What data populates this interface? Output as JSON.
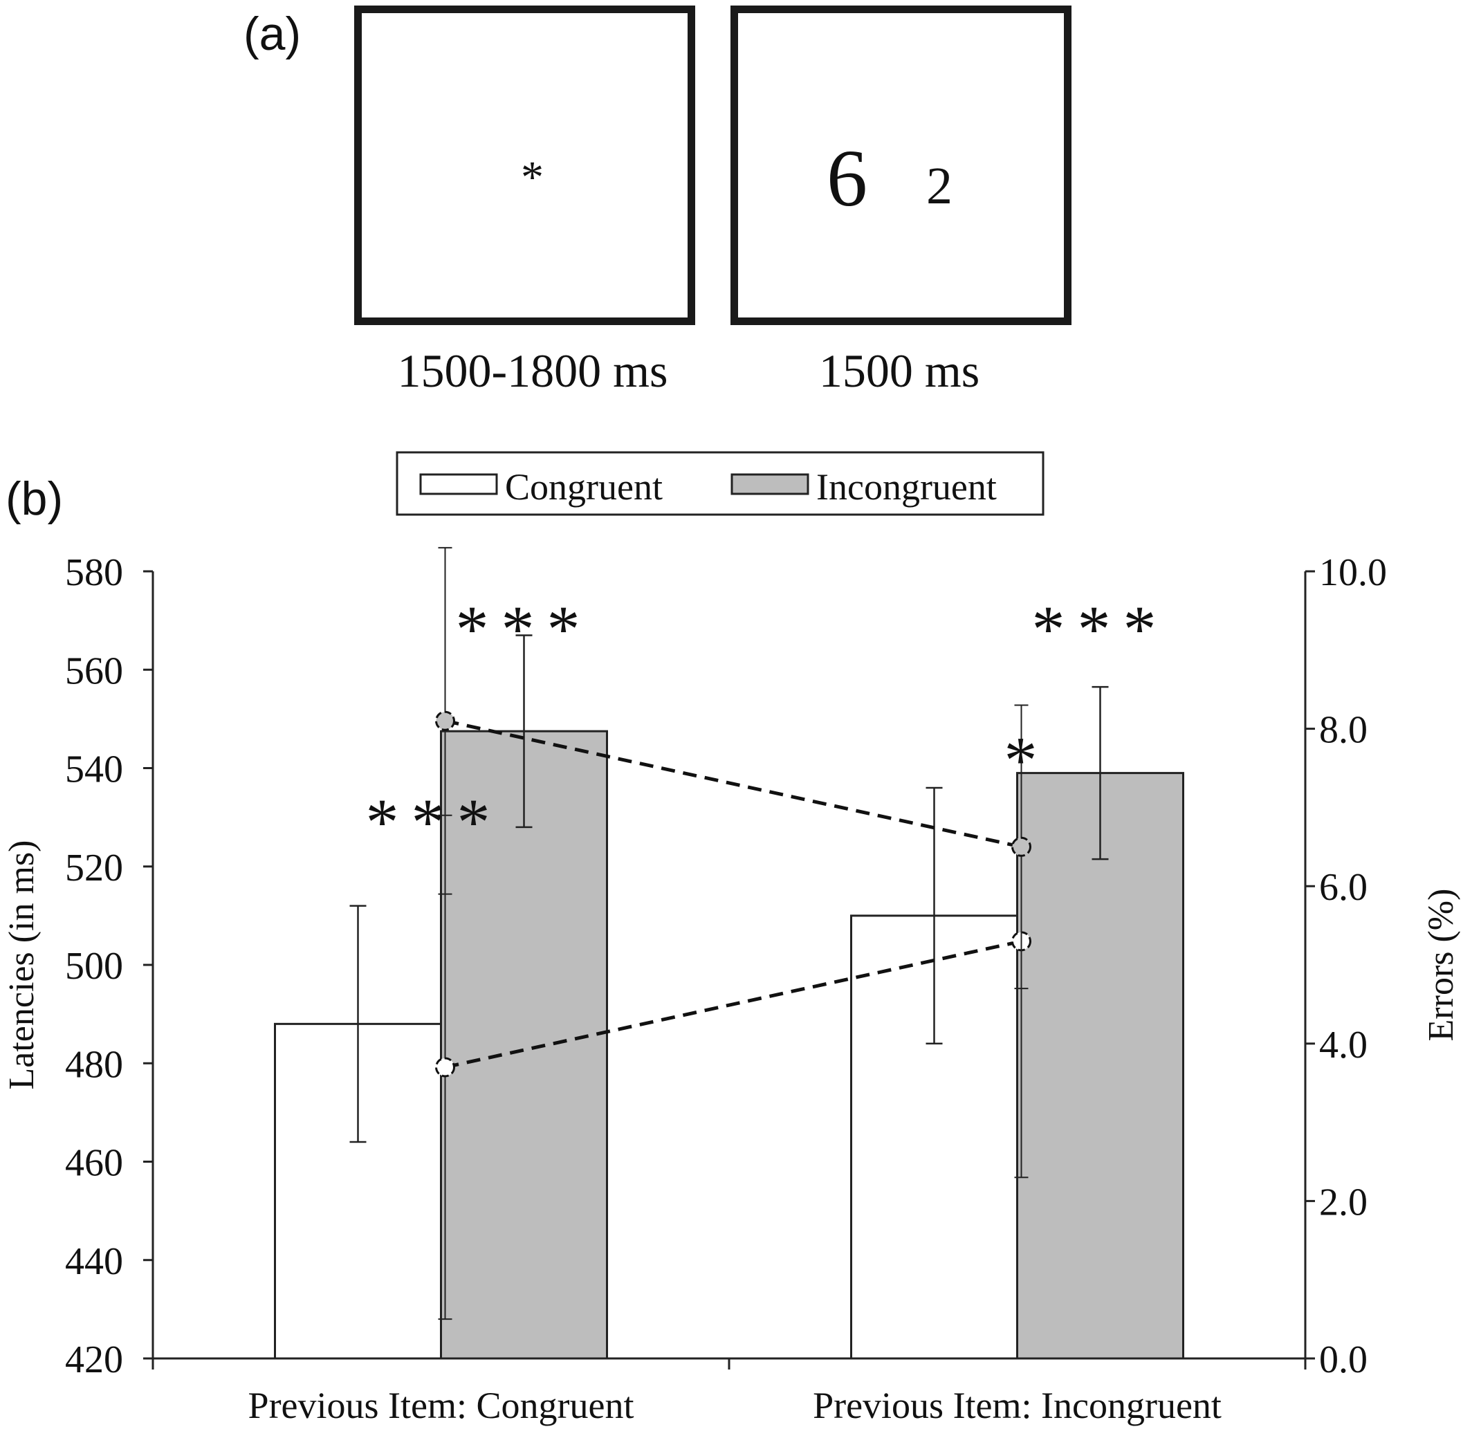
{
  "panel_a": {
    "label": "(a)",
    "frames": [
      {
        "content": "*",
        "caption": "1500-1800 ms"
      },
      {
        "digit_large": "6",
        "digit_small": "2",
        "caption": "1500 ms"
      }
    ]
  },
  "panel_b": {
    "label": "(b)"
  },
  "chart_data": {
    "type": "bar",
    "categories": [
      "Previous Item: Congruent",
      "Previous Item: Incongruent"
    ],
    "series": [
      {
        "name": "Congruent",
        "color": "#ffffff",
        "values": [
          488,
          510
        ],
        "errors": [
          24,
          26
        ]
      },
      {
        "name": "Incongruent",
        "color": "#bdbdbd",
        "values": [
          547.5,
          539
        ],
        "errors": [
          19.5,
          17.5
        ]
      }
    ],
    "errors_series": {
      "axis": "right",
      "line_style": "dashed",
      "series": [
        {
          "name": "Congruent",
          "marker_color": "#ffffff",
          "values": [
            3.7,
            5.3
          ],
          "errors": [
            3.2,
            3.0
          ]
        },
        {
          "name": "Incongruent",
          "marker_color": "#c0c0c0",
          "values": [
            8.1,
            6.5
          ],
          "errors": [
            2.2,
            1.8
          ]
        }
      ]
    },
    "significance": [
      {
        "category": 0,
        "target": "latency",
        "label": "***"
      },
      {
        "category": 1,
        "target": "latency",
        "label": "***"
      },
      {
        "category": 0,
        "target": "errors",
        "label": "***"
      },
      {
        "category": 1,
        "target": "errors",
        "label": "*"
      }
    ],
    "left_axis": {
      "label": "Latencies (in ms)",
      "min": 420,
      "max": 580,
      "step": 20,
      "ticks": [
        "420",
        "440",
        "460",
        "480",
        "500",
        "520",
        "540",
        "560",
        "580"
      ]
    },
    "right_axis": {
      "label": "Errors (%)",
      "min": 0,
      "max": 10,
      "step": 2,
      "ticks": [
        "0.0",
        "2.0",
        "4.0",
        "6.0",
        "8.0",
        "10.0"
      ]
    },
    "legend": {
      "position": "top-center",
      "items": [
        "Congruent",
        "Incongruent"
      ]
    },
    "grid": false
  }
}
